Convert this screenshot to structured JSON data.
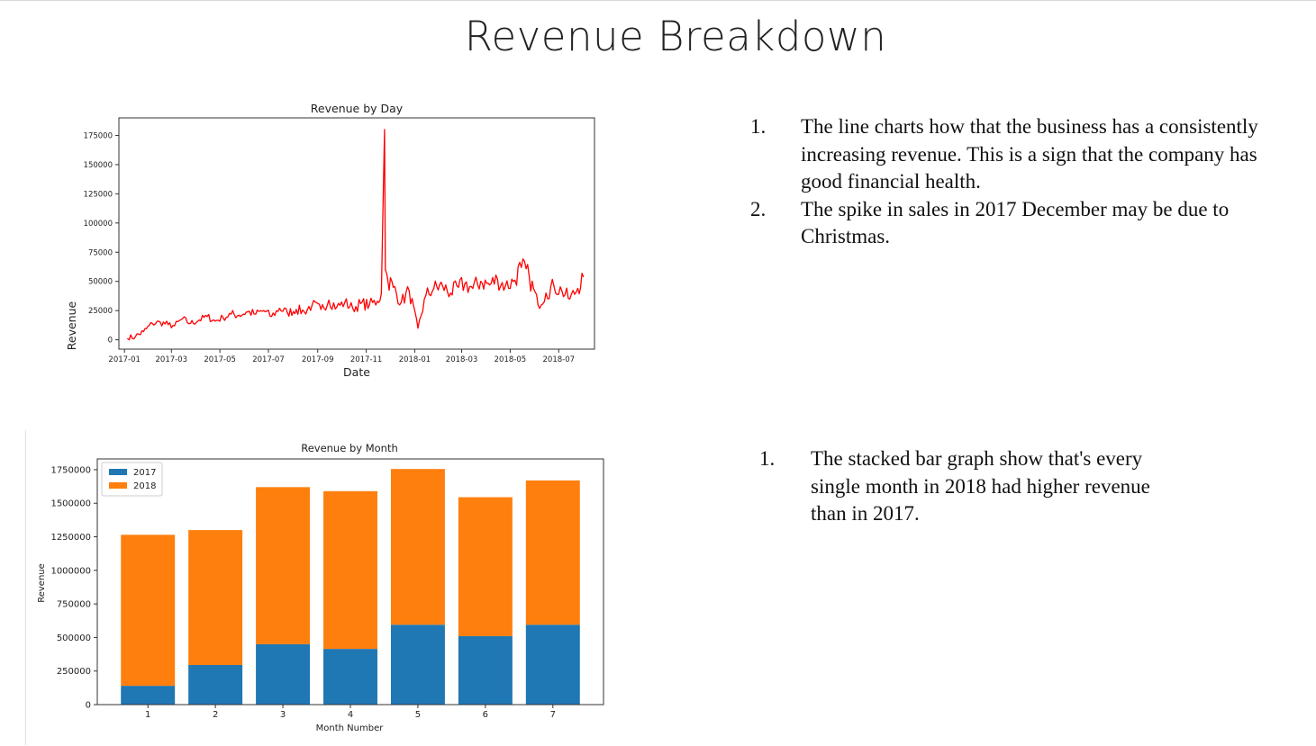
{
  "slide": {
    "title": "Revenue Breakdown"
  },
  "notes_top": [
    {
      "number": "1.",
      "text": "The line charts how that the business has a consistently increasing revenue. This is a sign that the company has good financial health."
    },
    {
      "number": "2.",
      "text": "The spike in sales in 2017 December may be due to Christmas."
    }
  ],
  "notes_bottom": [
    {
      "number": "1.",
      "text": "The stacked bar graph show that's every single month in 2018 had higher revenue than in 2017."
    }
  ],
  "chart_data": [
    {
      "type": "line",
      "title": "Revenue by Day",
      "xlabel": "Date",
      "ylabel": "Revenue",
      "ylim": [
        -8000,
        190000
      ],
      "yticks": [
        0,
        25000,
        50000,
        75000,
        100000,
        125000,
        150000,
        175000
      ],
      "xticks": [
        "2017-01",
        "2017-03",
        "2017-05",
        "2017-07",
        "2017-09",
        "2017-11",
        "2018-01",
        "2018-03",
        "2018-05",
        "2018-07"
      ],
      "x_range": [
        "2016-12-25",
        "2018-08-15"
      ],
      "grid": false,
      "color": "#ff0000",
      "series": [
        {
          "x": [
            "2017-01-05",
            "2017-01-15",
            "2017-01-25",
            "2017-02-05",
            "2017-02-15",
            "2017-02-25",
            "2017-03-05",
            "2017-03-15",
            "2017-03-25",
            "2017-04-05",
            "2017-04-15",
            "2017-04-25",
            "2017-05-05",
            "2017-05-15",
            "2017-05-25",
            "2017-06-05",
            "2017-06-15",
            "2017-06-25",
            "2017-07-05",
            "2017-07-15",
            "2017-07-25",
            "2017-08-05",
            "2017-08-15",
            "2017-08-25",
            "2017-09-05",
            "2017-09-15",
            "2017-09-25",
            "2017-10-05",
            "2017-10-15",
            "2017-10-25",
            "2017-11-05",
            "2017-11-15",
            "2017-11-20",
            "2017-11-24",
            "2017-11-25",
            "2017-11-28",
            "2017-12-05",
            "2017-12-15",
            "2017-12-25",
            "2018-01-05",
            "2018-01-15",
            "2018-01-25",
            "2018-02-05",
            "2018-02-15",
            "2018-02-25",
            "2018-03-05",
            "2018-03-15",
            "2018-03-25",
            "2018-04-05",
            "2018-04-15",
            "2018-04-25",
            "2018-05-05",
            "2018-05-15",
            "2018-05-25",
            "2018-06-05",
            "2018-06-15",
            "2018-06-25",
            "2018-07-05",
            "2018-07-15",
            "2018-07-25",
            "2018-08-01"
          ],
          "y": [
            1000,
            3000,
            7000,
            14000,
            15000,
            13000,
            12000,
            18000,
            14000,
            17000,
            20000,
            16000,
            19000,
            22000,
            21000,
            24000,
            22000,
            25000,
            20000,
            27000,
            23000,
            26000,
            24000,
            30000,
            26000,
            34000,
            28000,
            32000,
            27000,
            31000,
            30000,
            33000,
            40000,
            180000,
            60000,
            52000,
            45000,
            32000,
            42000,
            10000,
            38000,
            44000,
            46000,
            40000,
            45000,
            48000,
            44000,
            50000,
            47000,
            52000,
            46000,
            50000,
            62000,
            54000,
            30000,
            40000,
            46000,
            42000,
            35000,
            44000,
            54000
          ]
        }
      ]
    },
    {
      "type": "bar",
      "stacked": true,
      "title": "Revenue by Month",
      "xlabel": "Month Number",
      "ylabel": "Revenue",
      "ylim": [
        0,
        1830000
      ],
      "yticks": [
        0,
        250000,
        500000,
        750000,
        1000000,
        1250000,
        1500000,
        1750000
      ],
      "categories": [
        "1",
        "2",
        "3",
        "4",
        "5",
        "6",
        "7"
      ],
      "legend_position": "top-left",
      "grid": false,
      "series": [
        {
          "name": "2017",
          "color": "#1f77b4",
          "values": [
            140000,
            295000,
            450000,
            415000,
            595000,
            510000,
            595000
          ]
        },
        {
          "name": "2018",
          "color": "#ff7f0e",
          "values": [
            1125000,
            1005000,
            1170000,
            1175000,
            1160000,
            1035000,
            1075000
          ]
        }
      ]
    }
  ]
}
